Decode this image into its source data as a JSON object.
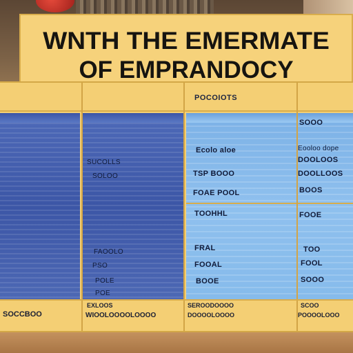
{
  "sign": {
    "line1": "WNTH THE EMERMATE",
    "line2": "OF EMPRANDOCY"
  },
  "board": {
    "headers": [
      "",
      "",
      "POCOIOTS",
      ""
    ],
    "col1": {
      "header": ""
    },
    "col3": {
      "rows": [
        "Ecolo aloe",
        "TSP BOOO",
        "FOAE POOL",
        "TOOHHL",
        "FRAL",
        "FOOAL",
        "BOOE"
      ]
    },
    "col2": {
      "rows": [
        "SUCOLLS",
        "SOLOO",
        "FAOOLO",
        "PSO",
        "POLE",
        "POE"
      ]
    },
    "col4": {
      "rows": [
        "SOOO",
        "Eooloo dope",
        "DOOLOOS",
        "DOOLLOOS",
        "BOOS",
        "FOOE",
        "TOO",
        "FOOL",
        "SOOO"
      ]
    },
    "footer": {
      "col1": "SOCCBOO",
      "col2a": "EXLOOS",
      "col2b": "WIOOLOOOOLOOOO",
      "col3a": "SEROODOOOO",
      "col3b": "DOOOOLOOOO",
      "col4a": "SCOO",
      "col4b": "POOOOLOOO"
    }
  }
}
